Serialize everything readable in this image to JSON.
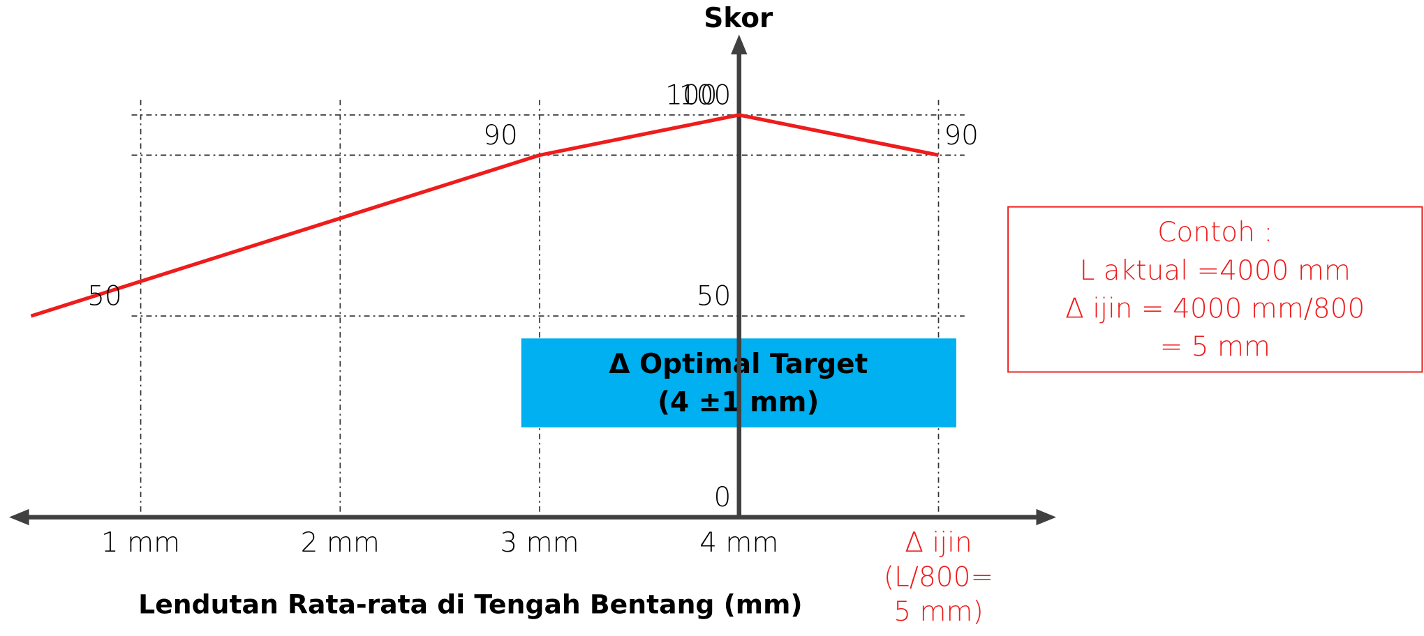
{
  "chart_data": {
    "type": "line",
    "y_label": "Skor",
    "x_label": "Lendutan Rata-rata di Tengah Bentang (mm)",
    "x": [
      0.45,
      3,
      4,
      5
    ],
    "series": [
      {
        "name": "Skor",
        "color": "#ee1c1c",
        "values": [
          50,
          90,
          100,
          90
        ]
      }
    ],
    "xlim": [
      0.34,
      5.59
    ],
    "xticks": [
      {
        "value": 1,
        "label": "1 mm"
      },
      {
        "value": 2,
        "label": "2 mm"
      },
      {
        "value": 3,
        "label": "3 mm"
      },
      {
        "value": 4,
        "label": "4 mm"
      },
      {
        "value": 5,
        "label": "Δ ijin (L/800= 5 mm)"
      }
    ],
    "ylim": [
      0,
      120
    ],
    "yticks": [
      0,
      50,
      100
    ],
    "grid": true,
    "target_box": {
      "lines": [
        "Δ Optimal Target",
        "(4 ±1 mm)"
      ],
      "color": "#00b0f0"
    },
    "note": {
      "lines": [
        "Contoh :",
        "L aktual =4000 mm",
        "Δ ijin = 4000 mm/800",
        "= 5 mm"
      ],
      "color": "#ee1c1c"
    }
  }
}
